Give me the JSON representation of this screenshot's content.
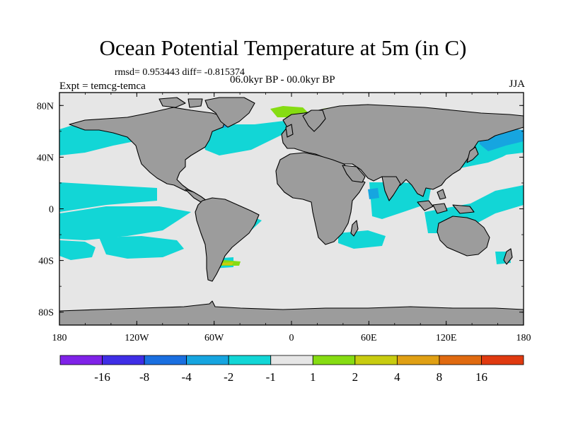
{
  "title": "Ocean Potential Temperature at 5m (in C)",
  "stats_line": "rmsd= 0.953443 diff= -0.815374",
  "experiment_line": "Expt = temcg-temca",
  "period_line": "06.0kyr BP - 00.0kyr BP",
  "season": "JJA",
  "map": {
    "projection": "cylindrical-equidistant",
    "lon_range": [
      -180,
      180
    ],
    "lat_range": [
      -90,
      90
    ],
    "land_color": "#9c9c9c",
    "background_color": "#e6e6e6",
    "x_ticks": [
      {
        "lon": -180,
        "label": "180"
      },
      {
        "lon": -120,
        "label": "120W"
      },
      {
        "lon": -60,
        "label": "60W"
      },
      {
        "lon": 0,
        "label": "0"
      },
      {
        "lon": 60,
        "label": "60E"
      },
      {
        "lon": 120,
        "label": "120E"
      },
      {
        "lon": 180,
        "label": "180"
      }
    ],
    "y_ticks": [
      {
        "lat": 80,
        "label": "80N"
      },
      {
        "lat": 40,
        "label": "40N"
      },
      {
        "lat": 0,
        "label": "0"
      },
      {
        "lat": -40,
        "label": "40S"
      },
      {
        "lat": -80,
        "label": "80S"
      }
    ]
  },
  "colorbar": {
    "colors": [
      "#7f22e8",
      "#3f2ee6",
      "#1a6fe0",
      "#16a5e0",
      "#12d6d6",
      "#e6e6e6",
      "#86dc12",
      "#c8cc10",
      "#e0a014",
      "#e06a10",
      "#e03a10"
    ],
    "labels": [
      "-16",
      "-8",
      "-4",
      "-2",
      "-1",
      "1",
      "2",
      "4",
      "8",
      "16"
    ]
  }
}
